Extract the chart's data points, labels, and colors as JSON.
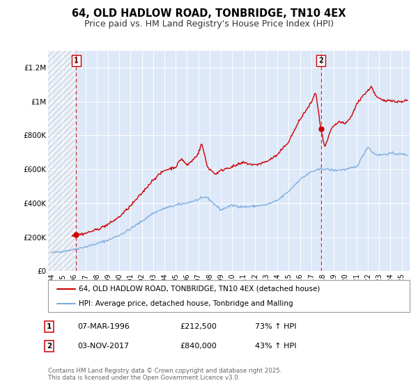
{
  "title": "64, OLD HADLOW ROAD, TONBRIDGE, TN10 4EX",
  "subtitle": "Price paid vs. HM Land Registry's House Price Index (HPI)",
  "xlim": [
    1993.7,
    2025.7
  ],
  "ylim": [
    0,
    1300000
  ],
  "yticks": [
    0,
    200000,
    400000,
    600000,
    800000,
    1000000,
    1200000
  ],
  "ytick_labels": [
    "£0",
    "£200K",
    "£400K",
    "£600K",
    "£800K",
    "£1M",
    "£1.2M"
  ],
  "bg_color": "#dde8f8",
  "grid_color": "#ffffff",
  "sale1_x": 1996.18,
  "sale1_y": 212500,
  "sale2_x": 2017.84,
  "sale2_y": 840000,
  "sale1_date": "07-MAR-1996",
  "sale1_price": "£212,500",
  "sale1_pct": "73% ↑ HPI",
  "sale2_date": "03-NOV-2017",
  "sale2_price": "£840,000",
  "sale2_pct": "43% ↑ HPI",
  "red_line_color": "#cc0000",
  "blue_line_color": "#7aaadd",
  "legend_label1": "64, OLD HADLOW ROAD, TONBRIDGE, TN10 4EX (detached house)",
  "legend_label2": "HPI: Average price, detached house, Tonbridge and Malling",
  "footer": "Contains HM Land Registry data © Crown copyright and database right 2025.\nThis data is licensed under the Open Government Licence v3.0.",
  "xticks": [
    1994,
    1995,
    1996,
    1997,
    1998,
    1999,
    2000,
    2001,
    2002,
    2003,
    2004,
    2005,
    2006,
    2007,
    2008,
    2009,
    2010,
    2011,
    2012,
    2013,
    2014,
    2015,
    2016,
    2017,
    2018,
    2019,
    2020,
    2021,
    2022,
    2023,
    2024,
    2025
  ]
}
